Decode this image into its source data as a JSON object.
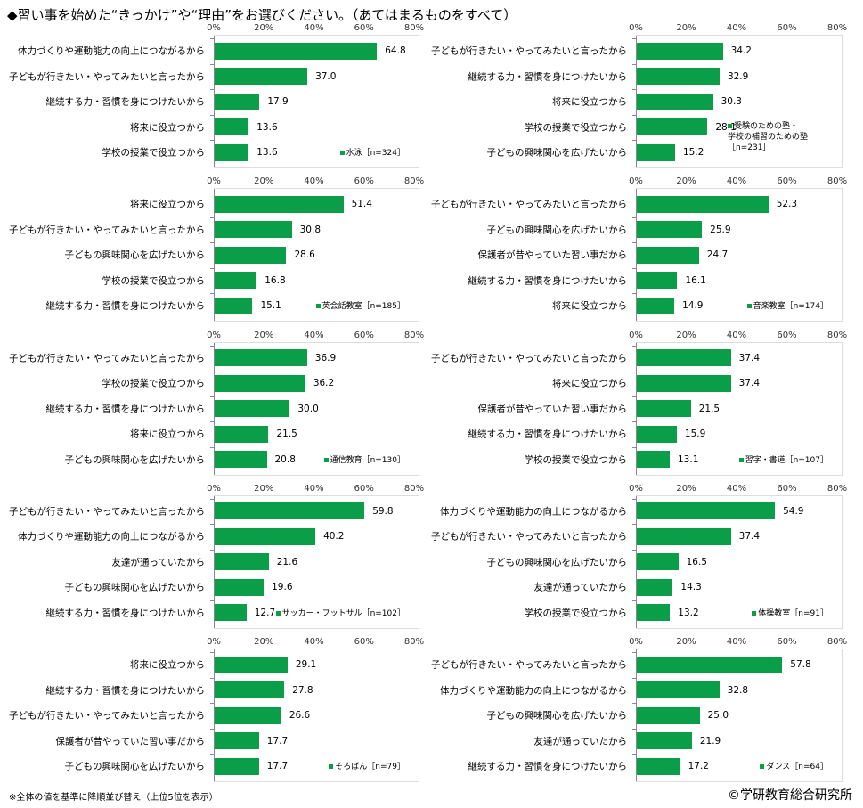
{
  "title": "◆習い事を始めた“きっかけ”や“理由”をお選びください。（あてはまるものをすべて）",
  "footnote": "※全体の値を基準に降順並び替え（上位5位を表示）",
  "copyright": "©学研教育総合研究所",
  "accent": "#0a9e48",
  "chart_data": [
    {
      "type": "bar",
      "orientation": "horizontal",
      "legend": "水泳［n=324］",
      "xlim": [
        0,
        80
      ],
      "ticks": [
        "0%",
        "20%",
        "40%",
        "60%",
        "80%"
      ],
      "categories": [
        "体力づくりや運動能力の向上につながるから",
        "子どもが行きたい・やってみたいと言ったから",
        "継続する力・習慣を身につけたいから",
        "将来に役立つから",
        "学校の授業で役立つから"
      ],
      "values": [
        64.8,
        37.0,
        17.9,
        13.6,
        13.6
      ]
    },
    {
      "type": "bar",
      "orientation": "horizontal",
      "legend": "受験のための塾・\n学校の補習のための塾\n［n=231］",
      "xlim": [
        0,
        80
      ],
      "ticks": [
        "0%",
        "20%",
        "40%",
        "60%",
        "80%"
      ],
      "categories": [
        "子どもが行きたい・やってみたいと言ったから",
        "継続する力・習慣を身につけたいから",
        "将来に役立つから",
        "学校の授業で役立つから",
        "子どもの興味関心を広げたいから"
      ],
      "values": [
        34.2,
        32.9,
        30.3,
        28.1,
        15.2
      ]
    },
    {
      "type": "bar",
      "orientation": "horizontal",
      "legend": "英会話教室［n=185］",
      "xlim": [
        0,
        80
      ],
      "ticks": [
        "0%",
        "20%",
        "40%",
        "60%",
        "80%"
      ],
      "categories": [
        "将来に役立つから",
        "子どもが行きたい・やってみたいと言ったから",
        "子どもの興味関心を広げたいから",
        "学校の授業で役立つから",
        "継続する力・習慣を身につけたいから"
      ],
      "values": [
        51.4,
        30.8,
        28.6,
        16.8,
        15.1
      ]
    },
    {
      "type": "bar",
      "orientation": "horizontal",
      "legend": "音楽教室［n=174］",
      "xlim": [
        0,
        80
      ],
      "ticks": [
        "0%",
        "20%",
        "40%",
        "60%",
        "80%"
      ],
      "categories": [
        "子どもが行きたい・やってみたいと言ったから",
        "子どもの興味関心を広げたいから",
        "保護者が昔やっていた習い事だから",
        "継続する力・習慣を身につけたいから",
        "将来に役立つから"
      ],
      "values": [
        52.3,
        25.9,
        24.7,
        16.1,
        14.9
      ]
    },
    {
      "type": "bar",
      "orientation": "horizontal",
      "legend": "通信教育［n=130］",
      "xlim": [
        0,
        80
      ],
      "ticks": [
        "0%",
        "20%",
        "40%",
        "60%",
        "80%"
      ],
      "categories": [
        "子どもが行きたい・やってみたいと言ったから",
        "学校の授業で役立つから",
        "継続する力・習慣を身につけたいから",
        "将来に役立つから",
        "子どもの興味関心を広げたいから"
      ],
      "values": [
        36.9,
        36.2,
        30.0,
        21.5,
        20.8
      ]
    },
    {
      "type": "bar",
      "orientation": "horizontal",
      "legend": "習字・書道［n=107］",
      "xlim": [
        0,
        80
      ],
      "ticks": [
        "0%",
        "20%",
        "40%",
        "60%",
        "80%"
      ],
      "categories": [
        "子どもが行きたい・やってみたいと言ったから",
        "将来に役立つから",
        "保護者が昔やっていた習い事だから",
        "継続する力・習慣を身につけたいから",
        "学校の授業で役立つから"
      ],
      "values": [
        37.4,
        37.4,
        21.5,
        15.9,
        13.1
      ]
    },
    {
      "type": "bar",
      "orientation": "horizontal",
      "legend": "サッカー・フットサル［n=102］",
      "xlim": [
        0,
        80
      ],
      "ticks": [
        "0%",
        "20%",
        "40%",
        "60%",
        "80%"
      ],
      "categories": [
        "子どもが行きたい・やってみたいと言ったから",
        "体力づくりや運動能力の向上につながるから",
        "友達が通っていたから",
        "子どもの興味関心を広げたいから",
        "継続する力・習慣を身につけたいから"
      ],
      "values": [
        59.8,
        40.2,
        21.6,
        19.6,
        12.7
      ]
    },
    {
      "type": "bar",
      "orientation": "horizontal",
      "legend": "体操教室［n=91］",
      "xlim": [
        0,
        80
      ],
      "ticks": [
        "0%",
        "20%",
        "40%",
        "60%",
        "80%"
      ],
      "categories": [
        "体力づくりや運動能力の向上につながるから",
        "子どもが行きたい・やってみたいと言ったから",
        "子どもの興味関心を広げたいから",
        "友達が通っていたから",
        "学校の授業で役立つから"
      ],
      "values": [
        54.9,
        37.4,
        16.5,
        14.3,
        13.2
      ]
    },
    {
      "type": "bar",
      "orientation": "horizontal",
      "legend": "そろばん［n=79］",
      "xlim": [
        0,
        80
      ],
      "ticks": [
        "0%",
        "20%",
        "40%",
        "60%",
        "80%"
      ],
      "categories": [
        "将来に役立つから",
        "継続する力・習慣を身につけたいから",
        "子どもが行きたい・やってみたいと言ったから",
        "保護者が昔やっていた習い事だから",
        "子どもの興味関心を広げたいから"
      ],
      "values": [
        29.1,
        27.8,
        26.6,
        17.7,
        17.7
      ]
    },
    {
      "type": "bar",
      "orientation": "horizontal",
      "legend": "ダンス［n=64］",
      "xlim": [
        0,
        80
      ],
      "ticks": [
        "0%",
        "20%",
        "40%",
        "60%",
        "80%"
      ],
      "categories": [
        "子どもが行きたい・やってみたいと言ったから",
        "体力づくりや運動能力の向上につながるから",
        "子どもの興味関心を広げたいから",
        "友達が通っていたから",
        "継続する力・習慣を身につけたいから"
      ],
      "values": [
        57.8,
        32.8,
        25.0,
        21.9,
        17.2
      ]
    }
  ]
}
